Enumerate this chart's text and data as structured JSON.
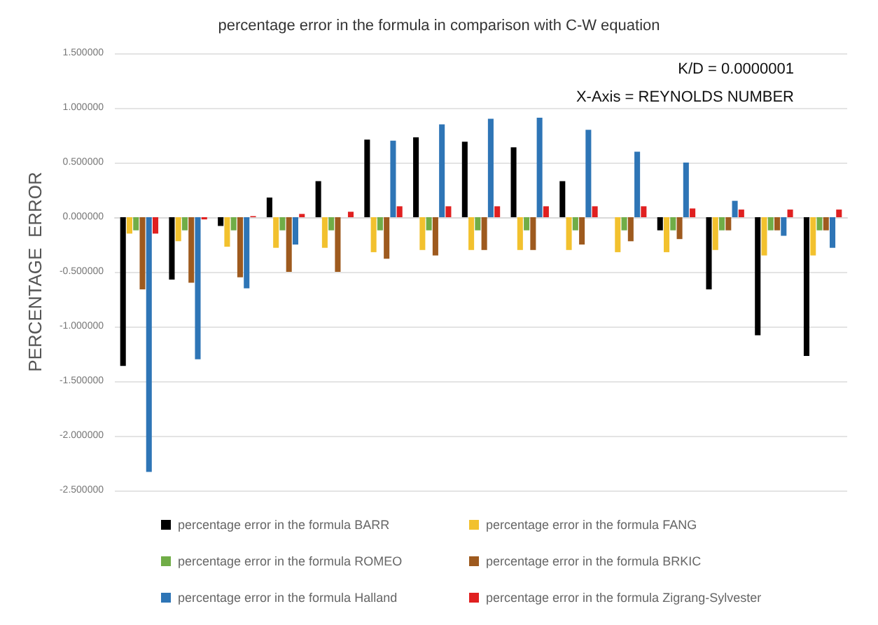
{
  "chart_data": {
    "type": "bar",
    "title": "percentage error in the formula in comparison with C-W equation",
    "ylabel": "PERCENTAGE  ERROR",
    "annotations": [
      "K/D = 0.0000001",
      "X-Axis = REYNOLDS NUMBER"
    ],
    "categories": [
      null,
      null,
      null,
      null,
      null,
      null,
      null,
      null,
      null,
      null,
      null,
      null,
      null,
      null,
      null
    ],
    "series": [
      {
        "name": "percentage error in the formula BARR",
        "color": "#000000",
        "values": [
          -1.36,
          -0.57,
          -0.08,
          0.18,
          0.33,
          0.71,
          0.73,
          0.69,
          0.64,
          0.33,
          0,
          -0.12,
          -0.66,
          -1.08,
          -1.27
        ]
      },
      {
        "name": "percentage error in the formula FANG",
        "color": "#f2c12e",
        "values": [
          -0.15,
          -0.22,
          -0.27,
          -0.28,
          -0.28,
          -0.32,
          -0.3,
          -0.3,
          -0.3,
          -0.3,
          -0.32,
          -0.32,
          -0.3,
          -0.35,
          -0.35
        ]
      },
      {
        "name": "percentage error in the formula ROMEO",
        "color": "#70ad47",
        "values": [
          -0.12,
          -0.12,
          -0.12,
          -0.12,
          -0.12,
          -0.12,
          -0.12,
          -0.12,
          -0.12,
          -0.12,
          -0.12,
          -0.12,
          -0.12,
          -0.12,
          -0.12
        ]
      },
      {
        "name": "percentage error in the formula BRKIC",
        "color": "#9e5a1e",
        "values": [
          -0.66,
          -0.6,
          -0.55,
          -0.5,
          -0.5,
          -0.38,
          -0.35,
          -0.3,
          -0.3,
          -0.25,
          -0.22,
          -0.2,
          -0.12,
          -0.12,
          -0.12
        ]
      },
      {
        "name": "percentage error in the formula Halland",
        "color": "#2e75b6",
        "values": [
          -2.33,
          -1.3,
          -0.65,
          -0.25,
          0,
          0.7,
          0.85,
          0.9,
          0.91,
          0.8,
          0.6,
          0.5,
          0.15,
          -0.17,
          -0.28
        ]
      },
      {
        "name": "percentage error in the formula Zigrang-Sylvester",
        "color": "#e02020",
        "values": [
          -0.15,
          -0.02,
          0.01,
          0.03,
          0.05,
          0.1,
          0.1,
          0.1,
          0.1,
          0.1,
          0.1,
          0.08,
          0.07,
          0.07,
          0.07
        ]
      }
    ],
    "ylim": [
      -2.5,
      1.5
    ],
    "yticks": [
      {
        "value": -2.5,
        "label": "-2.500000"
      },
      {
        "value": -2,
        "label": "-2.000000"
      },
      {
        "value": -1.5,
        "label": "-1.500000"
      },
      {
        "value": -1,
        "label": "-1.000000"
      },
      {
        "value": -0.5,
        "label": "-0.500000"
      },
      {
        "value": 0,
        "label": "0.000000"
      },
      {
        "value": 0.5,
        "label": "0.500000"
      },
      {
        "value": 1,
        "label": "1.000000"
      },
      {
        "value": 1.5,
        "label": "1.500000"
      }
    ],
    "grid": "y",
    "legend": "bottom"
  }
}
